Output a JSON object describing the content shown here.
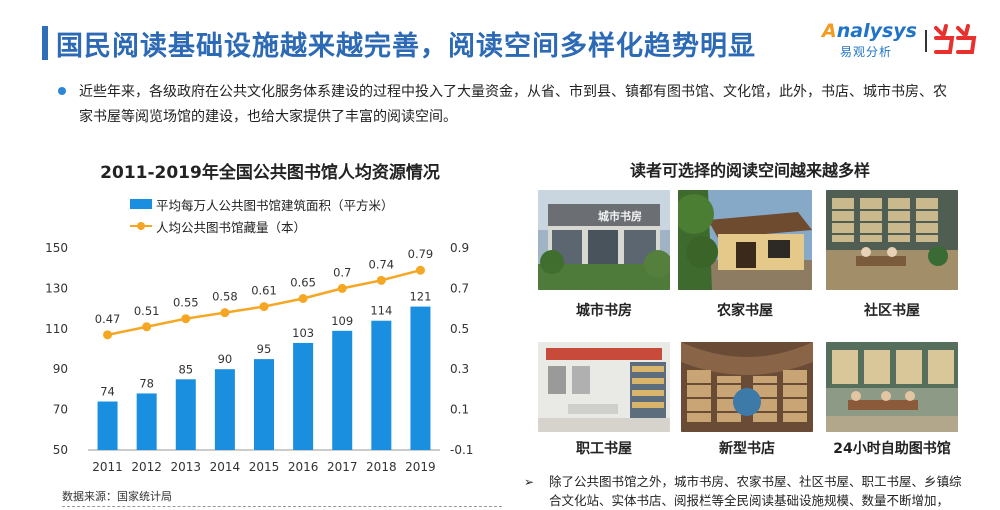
{
  "header": {
    "title": "国民阅读基础设施越来越完善，阅读空间多样化趋势明显",
    "logo_en": "nalysys",
    "logo_en_o": "A",
    "logo_cn": "易观分析"
  },
  "intro": {
    "text": "近些年来，各级政府在公共文化服务体系建设的过程中投入了大量资金，从省、市到县、镇都有图书馆、文化馆，此外，书店、城市书房、农家书屋等阅览场馆的建设，也给大家提供了丰富的阅读空间。"
  },
  "chart_data": {
    "type": "bar",
    "title": "2011-2019年全国公共图书馆人均资源情况",
    "categories": [
      "2011",
      "2012",
      "2013",
      "2014",
      "2015",
      "2016",
      "2017",
      "2018",
      "2019"
    ],
    "series": [
      {
        "name": "平均每万人公共图书馆建筑面积（平方米）",
        "type": "bar",
        "axis": "left",
        "color": "#1a8fe0",
        "values": [
          74,
          78,
          85,
          90,
          95,
          103,
          109,
          114,
          121
        ]
      },
      {
        "name": "人均公共图书馆藏量（本）",
        "type": "line",
        "axis": "right",
        "color": "#f5a623",
        "values": [
          0.47,
          0.51,
          0.55,
          0.58,
          0.61,
          0.65,
          0.7,
          0.74,
          0.79
        ]
      }
    ],
    "ylim_left": [
      50,
      150
    ],
    "yticks_left": [
      "150",
      "130",
      "110",
      "90",
      "70",
      "50"
    ],
    "ylim_right": [
      -0.1,
      0.9
    ],
    "yticks_right": [
      "0.9",
      "0.7",
      "0.5",
      "0.3",
      "0.1",
      "-0.1"
    ],
    "grid": false,
    "legend_position": "top"
  },
  "source": "数据来源：国家统计局",
  "right": {
    "title": "读者可选择的阅读空间越来越多样",
    "photos": [
      {
        "caption": "城市书房",
        "sign": "城市书房"
      },
      {
        "caption": "农家书屋"
      },
      {
        "caption": "社区书屋"
      },
      {
        "caption": "职工书屋"
      },
      {
        "caption": "新型书店"
      },
      {
        "caption": "24小时自助图书馆"
      }
    ],
    "note_arrow": "➢",
    "note": "除了公共图书馆之外，城市书房、农家书屋、社区书屋、职工书屋、乡镇综合文化站、实体书店、阅报栏等全民阅读基础设施规模、数量不断增加，"
  }
}
